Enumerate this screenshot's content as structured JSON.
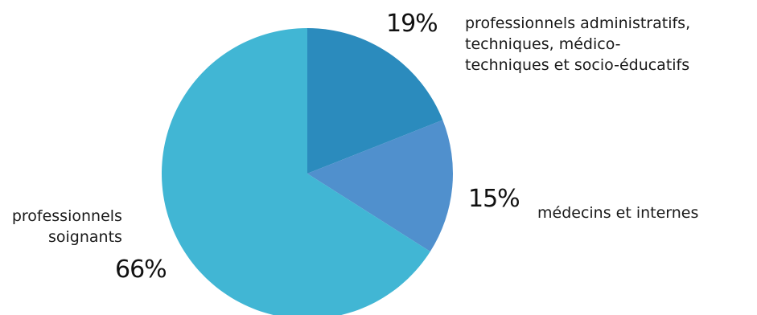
{
  "chart_data": {
    "type": "pie",
    "title": "",
    "start_angle_deg": 0,
    "direction": "clockwise",
    "slices": [
      {
        "label_lines": [
          "professionnels administratifs,",
          "techniques, médico-",
          "techniques et socio-éducatifs"
        ],
        "value": 19,
        "value_label": "19%",
        "color": "#2b8bbd"
      },
      {
        "label_lines": [
          "médecins et internes"
        ],
        "value": 15,
        "value_label": "15%",
        "color": "#5090cd"
      },
      {
        "label_lines": [
          "professionnels",
          "soignants"
        ],
        "value": 66,
        "value_label": "66%",
        "color": "#41b6d4"
      }
    ]
  }
}
